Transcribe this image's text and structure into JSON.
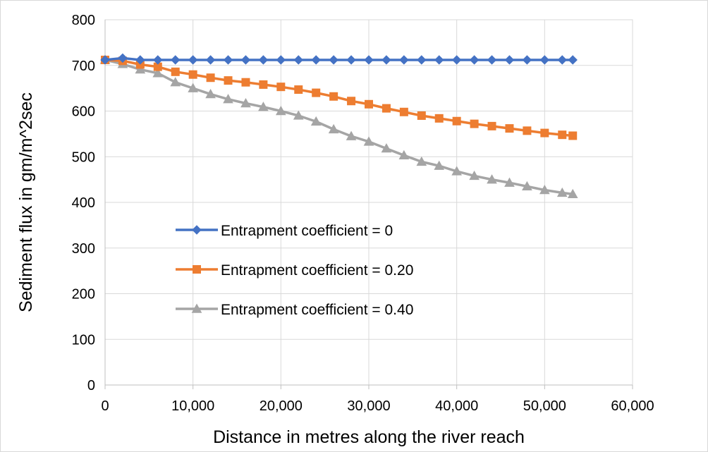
{
  "chart_data": {
    "type": "line",
    "title": "",
    "xlabel": "Distance in metres along the river reach",
    "ylabel": "Sediment flux in gm/m^2sec",
    "xlim": [
      0,
      60000
    ],
    "ylim": [
      0,
      800
    ],
    "x_ticks": [
      "0",
      "10,000",
      "20,000",
      "30,000",
      "40,000",
      "50,000",
      "60,000"
    ],
    "y_ticks": [
      "0",
      "100",
      "200",
      "300",
      "400",
      "500",
      "600",
      "700",
      "800"
    ],
    "x_tick_values": [
      0,
      10000,
      20000,
      30000,
      40000,
      50000,
      60000
    ],
    "y_tick_values": [
      0,
      100,
      200,
      300,
      400,
      500,
      600,
      700,
      800
    ],
    "grid": true,
    "legend_position": "center-left",
    "x": [
      0,
      2000,
      4000,
      6000,
      8000,
      10000,
      12000,
      14000,
      16000,
      18000,
      20000,
      22000,
      24000,
      26000,
      28000,
      30000,
      32000,
      34000,
      36000,
      38000,
      40000,
      42000,
      44000,
      46000,
      48000,
      50000,
      52000,
      53200
    ],
    "series": [
      {
        "name": "Entrapment coefficient = 0",
        "color": "#4472c4",
        "marker": "diamond",
        "values": [
          712,
          716,
          712,
          712,
          712,
          712,
          712,
          712,
          712,
          712,
          712,
          712,
          712,
          712,
          712,
          712,
          712,
          712,
          712,
          712,
          712,
          712,
          712,
          712,
          712,
          712,
          712,
          712
        ]
      },
      {
        "name": "Entrapment coefficient = 0.20",
        "color": "#ed7d31",
        "marker": "square",
        "values": [
          712,
          710,
          702,
          697,
          686,
          680,
          673,
          667,
          663,
          658,
          653,
          647,
          640,
          632,
          622,
          615,
          606,
          598,
          590,
          584,
          578,
          572,
          567,
          562,
          557,
          552,
          548,
          546
        ]
      },
      {
        "name": "Entrapment coefficient = 0.40",
        "color": "#a5a5a5",
        "marker": "triangle",
        "values": [
          712,
          703,
          691,
          683,
          663,
          650,
          637,
          626,
          617,
          609,
          600,
          590,
          577,
          560,
          545,
          533,
          518,
          503,
          489,
          480,
          468,
          458,
          450,
          443,
          435,
          427,
          421,
          418
        ]
      }
    ]
  }
}
